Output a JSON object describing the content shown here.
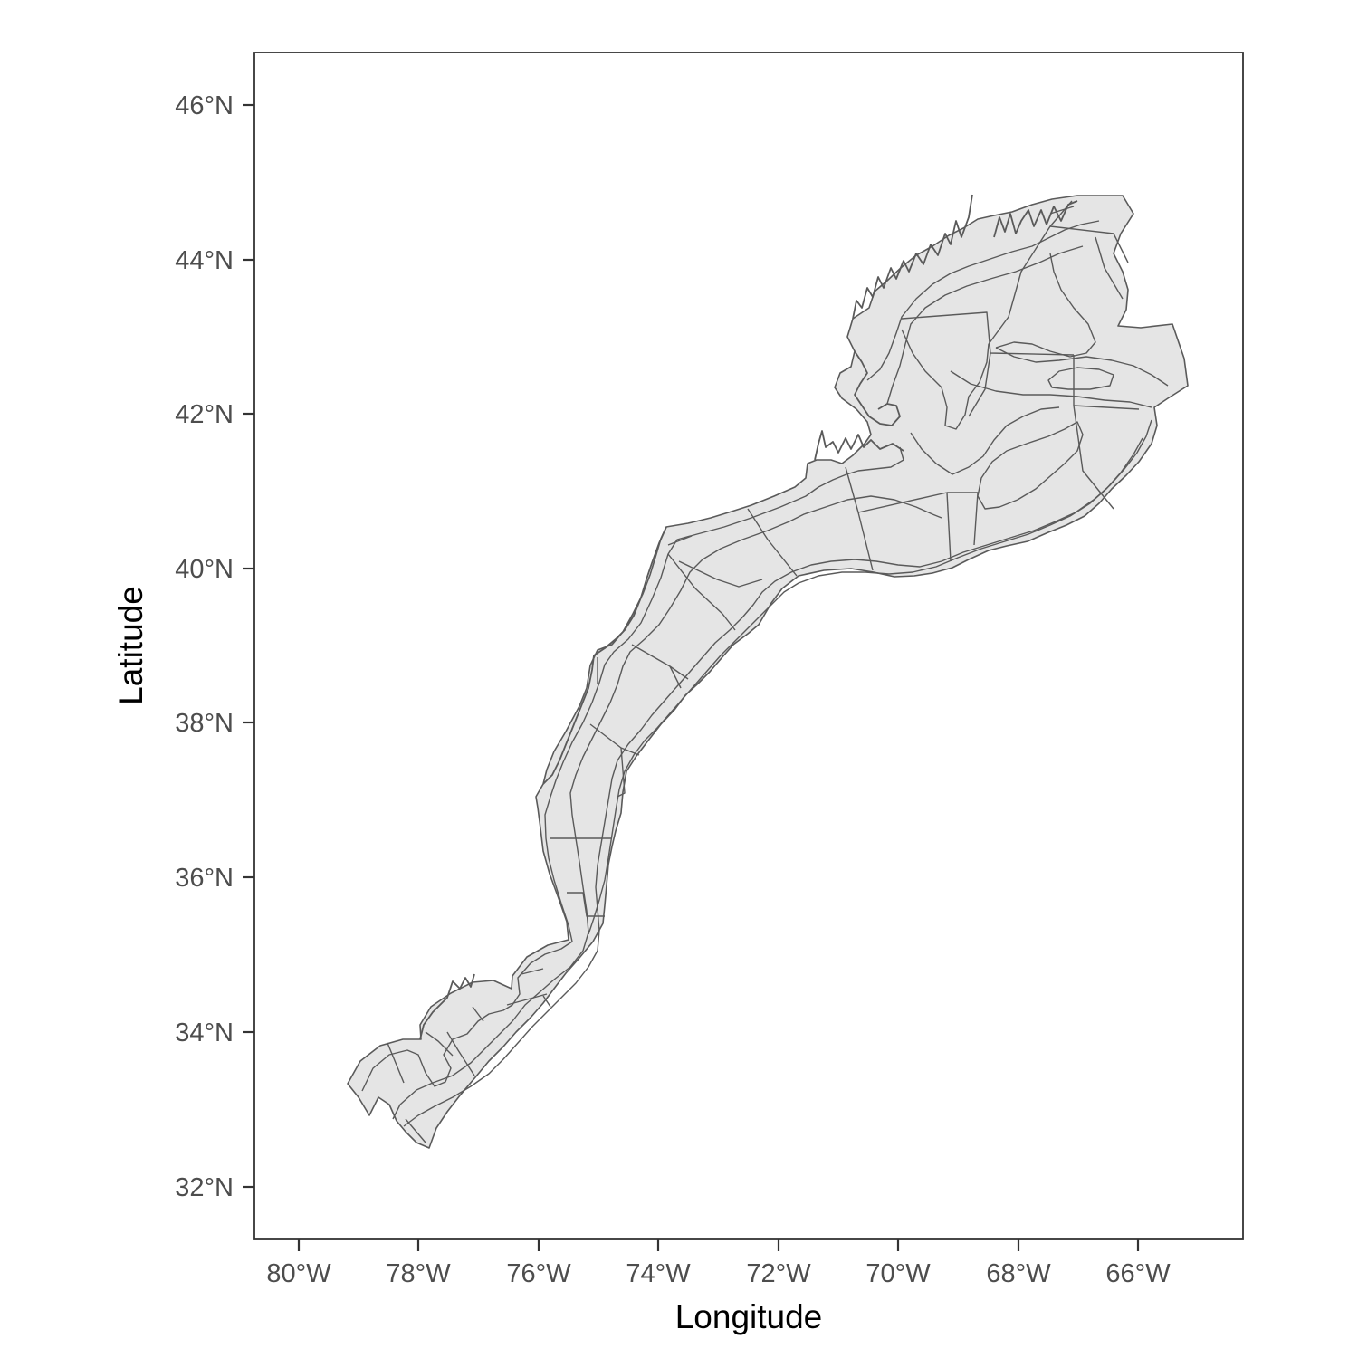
{
  "map": {
    "x_axis": {
      "title": "Longitude",
      "ticks": [
        {
          "value": -80,
          "label": "80°W"
        },
        {
          "value": -78,
          "label": "78°W"
        },
        {
          "value": -76,
          "label": "76°W"
        },
        {
          "value": -74,
          "label": "74°W"
        },
        {
          "value": -72,
          "label": "72°W"
        },
        {
          "value": -70,
          "label": "70°W"
        },
        {
          "value": -68,
          "label": "68°W"
        },
        {
          "value": -66,
          "label": "66°W"
        }
      ]
    },
    "y_axis": {
      "title": "Latitude",
      "ticks": [
        {
          "value": 32,
          "label": "32°N"
        },
        {
          "value": 34,
          "label": "34°N"
        },
        {
          "value": 36,
          "label": "36°N"
        },
        {
          "value": 38,
          "label": "38°N"
        },
        {
          "value": 40,
          "label": "40°N"
        },
        {
          "value": 42,
          "label": "42°N"
        },
        {
          "value": 44,
          "label": "44°N"
        },
        {
          "value": 46,
          "label": "46°N"
        }
      ]
    },
    "colors": {
      "region_fill": "#e5e5e5",
      "region_stroke": "#5a5a5a",
      "panel_border": "#333333",
      "background": "#ffffff"
    }
  }
}
